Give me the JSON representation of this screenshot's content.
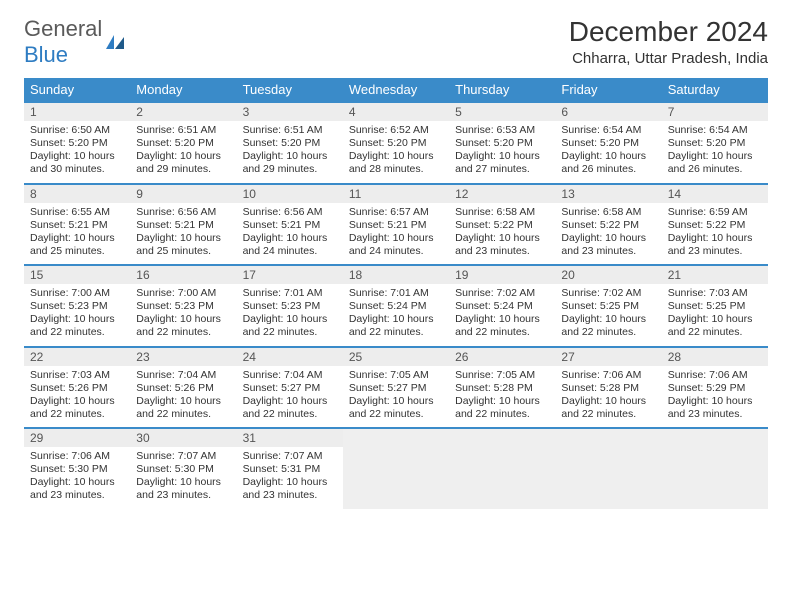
{
  "logo": {
    "text1": "General",
    "text2": "Blue"
  },
  "title": "December 2024",
  "subtitle": "Chharra, Uttar Pradesh, India",
  "header_bg": "#3a8bc9",
  "header_fg": "#ffffff",
  "row_border": "#3a8bc9",
  "daynum_bg": "#ededed",
  "empty_bg": "#efefef",
  "weekdays": [
    "Sunday",
    "Monday",
    "Tuesday",
    "Wednesday",
    "Thursday",
    "Friday",
    "Saturday"
  ],
  "weeks": [
    [
      {
        "n": "1",
        "sr": "6:50 AM",
        "ss": "5:20 PM",
        "dl": "10 hours and 30 minutes."
      },
      {
        "n": "2",
        "sr": "6:51 AM",
        "ss": "5:20 PM",
        "dl": "10 hours and 29 minutes."
      },
      {
        "n": "3",
        "sr": "6:51 AM",
        "ss": "5:20 PM",
        "dl": "10 hours and 29 minutes."
      },
      {
        "n": "4",
        "sr": "6:52 AM",
        "ss": "5:20 PM",
        "dl": "10 hours and 28 minutes."
      },
      {
        "n": "5",
        "sr": "6:53 AM",
        "ss": "5:20 PM",
        "dl": "10 hours and 27 minutes."
      },
      {
        "n": "6",
        "sr": "6:54 AM",
        "ss": "5:20 PM",
        "dl": "10 hours and 26 minutes."
      },
      {
        "n": "7",
        "sr": "6:54 AM",
        "ss": "5:20 PM",
        "dl": "10 hours and 26 minutes."
      }
    ],
    [
      {
        "n": "8",
        "sr": "6:55 AM",
        "ss": "5:21 PM",
        "dl": "10 hours and 25 minutes."
      },
      {
        "n": "9",
        "sr": "6:56 AM",
        "ss": "5:21 PM",
        "dl": "10 hours and 25 minutes."
      },
      {
        "n": "10",
        "sr": "6:56 AM",
        "ss": "5:21 PM",
        "dl": "10 hours and 24 minutes."
      },
      {
        "n": "11",
        "sr": "6:57 AM",
        "ss": "5:21 PM",
        "dl": "10 hours and 24 minutes."
      },
      {
        "n": "12",
        "sr": "6:58 AM",
        "ss": "5:22 PM",
        "dl": "10 hours and 23 minutes."
      },
      {
        "n": "13",
        "sr": "6:58 AM",
        "ss": "5:22 PM",
        "dl": "10 hours and 23 minutes."
      },
      {
        "n": "14",
        "sr": "6:59 AM",
        "ss": "5:22 PM",
        "dl": "10 hours and 23 minutes."
      }
    ],
    [
      {
        "n": "15",
        "sr": "7:00 AM",
        "ss": "5:23 PM",
        "dl": "10 hours and 22 minutes."
      },
      {
        "n": "16",
        "sr": "7:00 AM",
        "ss": "5:23 PM",
        "dl": "10 hours and 22 minutes."
      },
      {
        "n": "17",
        "sr": "7:01 AM",
        "ss": "5:23 PM",
        "dl": "10 hours and 22 minutes."
      },
      {
        "n": "18",
        "sr": "7:01 AM",
        "ss": "5:24 PM",
        "dl": "10 hours and 22 minutes."
      },
      {
        "n": "19",
        "sr": "7:02 AM",
        "ss": "5:24 PM",
        "dl": "10 hours and 22 minutes."
      },
      {
        "n": "20",
        "sr": "7:02 AM",
        "ss": "5:25 PM",
        "dl": "10 hours and 22 minutes."
      },
      {
        "n": "21",
        "sr": "7:03 AM",
        "ss": "5:25 PM",
        "dl": "10 hours and 22 minutes."
      }
    ],
    [
      {
        "n": "22",
        "sr": "7:03 AM",
        "ss": "5:26 PM",
        "dl": "10 hours and 22 minutes."
      },
      {
        "n": "23",
        "sr": "7:04 AM",
        "ss": "5:26 PM",
        "dl": "10 hours and 22 minutes."
      },
      {
        "n": "24",
        "sr": "7:04 AM",
        "ss": "5:27 PM",
        "dl": "10 hours and 22 minutes."
      },
      {
        "n": "25",
        "sr": "7:05 AM",
        "ss": "5:27 PM",
        "dl": "10 hours and 22 minutes."
      },
      {
        "n": "26",
        "sr": "7:05 AM",
        "ss": "5:28 PM",
        "dl": "10 hours and 22 minutes."
      },
      {
        "n": "27",
        "sr": "7:06 AM",
        "ss": "5:28 PM",
        "dl": "10 hours and 22 minutes."
      },
      {
        "n": "28",
        "sr": "7:06 AM",
        "ss": "5:29 PM",
        "dl": "10 hours and 23 minutes."
      }
    ],
    [
      {
        "n": "29",
        "sr": "7:06 AM",
        "ss": "5:30 PM",
        "dl": "10 hours and 23 minutes."
      },
      {
        "n": "30",
        "sr": "7:07 AM",
        "ss": "5:30 PM",
        "dl": "10 hours and 23 minutes."
      },
      {
        "n": "31",
        "sr": "7:07 AM",
        "ss": "5:31 PM",
        "dl": "10 hours and 23 minutes."
      },
      null,
      null,
      null,
      null
    ]
  ],
  "labels": {
    "sunrise": "Sunrise:",
    "sunset": "Sunset:",
    "daylight": "Daylight:"
  }
}
